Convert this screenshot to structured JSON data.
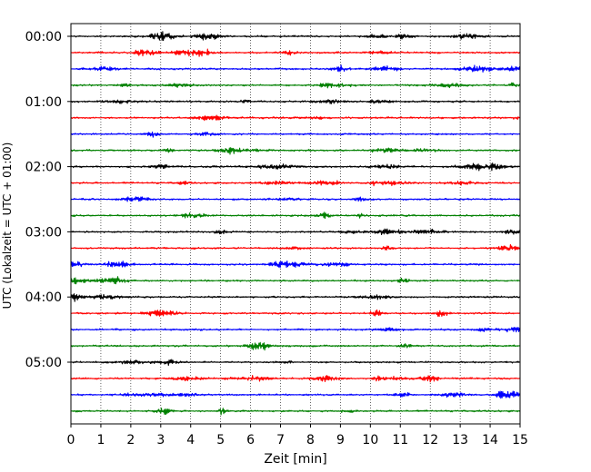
{
  "chart_data": {
    "type": "line",
    "subtype": "seismogram-helicorder",
    "xlabel": "Zeit  [min]",
    "ylabel": "UTC (Lokalzeit = UTC + 01:00)",
    "xlim": [
      0,
      15
    ],
    "x_ticks": [
      "0",
      "1",
      "2",
      "3",
      "4",
      "5",
      "6",
      "7",
      "8",
      "9",
      "10",
      "11",
      "12",
      "13",
      "14",
      "15"
    ],
    "y_ticks": [
      "00:00",
      "01:00",
      "02:00",
      "03:00",
      "04:00",
      "05:00"
    ],
    "grid": "vertical-dotted",
    "minutes_per_trace": 15,
    "trace_count": 24,
    "trace_colors": [
      "#000000",
      "#ff0000",
      "#0000ff",
      "#008000"
    ]
  }
}
